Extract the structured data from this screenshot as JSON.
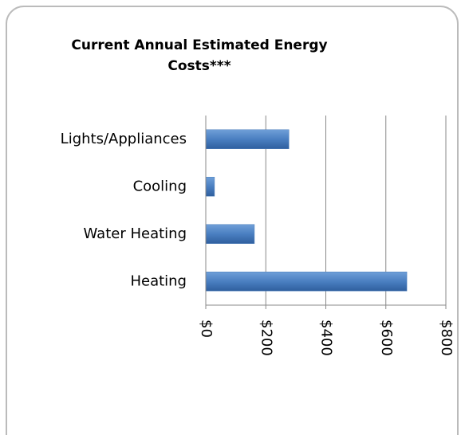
{
  "chart_data": {
    "type": "bar",
    "orientation": "horizontal",
    "title": "Current Annual Estimated Energy Costs***",
    "categories": [
      "Lights/Appliances",
      "Cooling",
      "Water Heating",
      "Heating"
    ],
    "values": [
      277,
      29,
      162,
      670
    ],
    "color": "#4f81bd",
    "xlim": [
      0,
      800
    ],
    "xticks": [
      {
        "value": 0,
        "label": "$0"
      },
      {
        "value": 200,
        "label": "$200"
      },
      {
        "value": 400,
        "label": "$400"
      },
      {
        "value": 600,
        "label": "$600"
      },
      {
        "value": 800,
        "label": "$800"
      }
    ],
    "grid": true
  }
}
